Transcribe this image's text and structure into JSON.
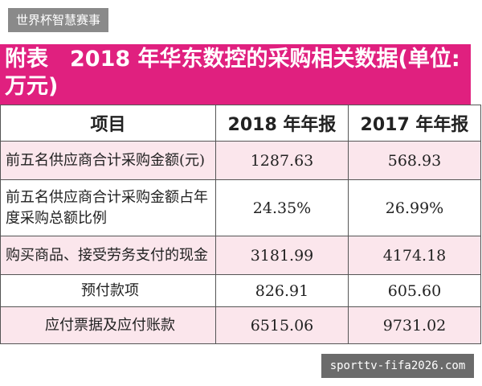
{
  "watermark_top": "世界杯智慧赛事",
  "table": {
    "title": "附表　2018 年华东数控的采购相关数据(单位:万元)",
    "header": [
      "项目",
      "2018 年年报",
      "2017 年年报"
    ],
    "rows": [
      [
        "前五名供应商合计采购金额(元)",
        "1287.63",
        "568.93"
      ],
      [
        "前五名供应商合计采购金额占年度采购总额比例",
        "24.35%",
        "26.99%"
      ],
      [
        "购买商品、接受劳务支付的现金",
        "3181.99",
        "4174.18"
      ],
      [
        "预付款项",
        "826.91",
        "605.60"
      ],
      [
        "应付票据及应付账款",
        "6515.06",
        "9731.02"
      ]
    ]
  },
  "watermark_bottom": "sporttv-fifa2026.com"
}
